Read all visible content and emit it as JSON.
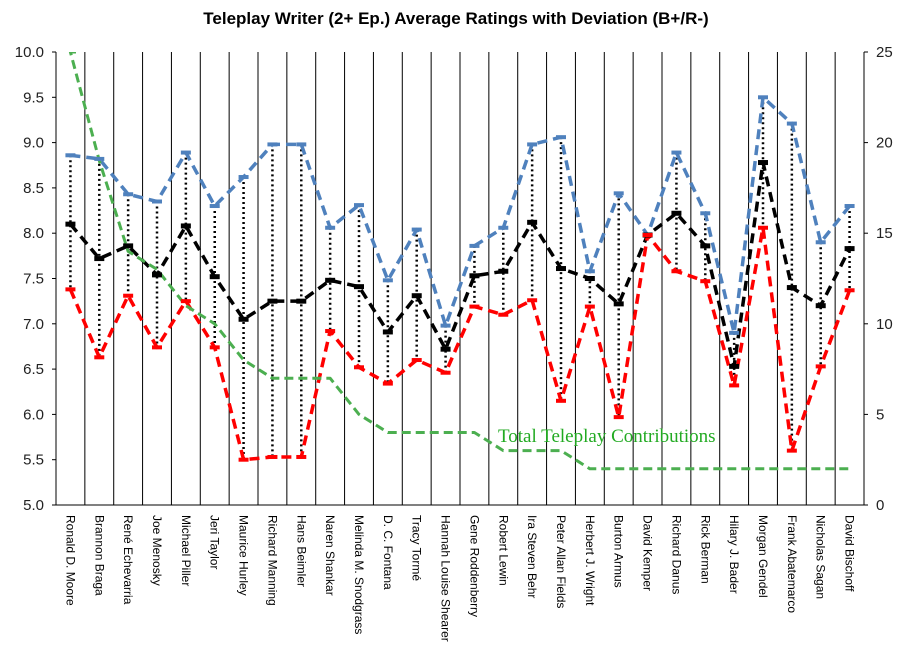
{
  "chart_data": {
    "type": "line",
    "title": "Teleplay Writer (2+ Ep.) Average Ratings with Deviation (B+/R-)",
    "categories": [
      "Ronald D. Moore",
      "Brannon Braga",
      "René Echevarria",
      "Joe Menosky",
      "Michael Piller",
      "Jeri Taylor",
      "Maurice Hurley",
      "Richard Manning",
      "Hans Beimler",
      "Naren Shankar",
      "Melinda M. Snodgrass",
      "D. C. Fontana",
      "Tracy Tormé",
      "Hannah Louise Shearer",
      "Gene Roddenberry",
      "Robert Lewin",
      "Ira Steven Behr",
      "Peter Allan Fields",
      "Herbert J. Wright",
      "Burton Armus",
      "David Kemper",
      "Richard Danus",
      "Rick Berman",
      "Hilary J. Bader",
      "Morgan Gendel",
      "Frank Abatemarco",
      "Nicholas Sagan",
      "David Bischoff"
    ],
    "series": [
      {
        "name": "",
        "role": "max",
        "color": "#4f81bd",
        "axis": "left",
        "values": [
          8.86,
          8.82,
          8.43,
          8.35,
          8.89,
          8.3,
          8.62,
          8.98,
          8.98,
          8.06,
          8.31,
          7.48,
          8.04,
          6.98,
          7.86,
          8.06,
          8.98,
          9.06,
          7.58,
          8.44,
          7.98,
          8.89,
          8.22,
          6.9,
          9.5,
          9.21,
          7.9,
          8.3
        ]
      },
      {
        "name": "",
        "role": "average",
        "color": "#000000",
        "axis": "left",
        "values": [
          8.1,
          7.72,
          7.86,
          7.54,
          8.08,
          7.52,
          7.05,
          7.25,
          7.25,
          7.48,
          7.41,
          6.91,
          7.31,
          6.72,
          7.53,
          7.58,
          8.12,
          7.61,
          7.5,
          7.22,
          7.98,
          8.22,
          7.86,
          6.53,
          8.78,
          7.4,
          7.2,
          7.83
        ]
      },
      {
        "name": "",
        "role": "min",
        "color": "#ff0000",
        "axis": "left",
        "values": [
          7.38,
          6.63,
          7.31,
          6.74,
          7.25,
          6.74,
          5.5,
          5.53,
          5.53,
          6.92,
          6.52,
          6.34,
          6.6,
          6.46,
          7.19,
          7.1,
          7.26,
          6.15,
          7.19,
          5.97,
          7.98,
          7.58,
          7.47,
          6.32,
          8.06,
          5.6,
          6.53,
          7.37
        ]
      },
      {
        "name": "Total Teleplay Contributions",
        "color": "#4caf50",
        "axis": "right",
        "values": [
          25,
          19,
          14,
          13,
          11,
          10,
          8,
          7,
          7,
          7,
          5,
          4,
          4,
          4,
          4,
          3,
          3,
          3,
          2,
          2,
          2,
          2,
          2,
          2,
          2,
          2,
          2,
          2
        ]
      }
    ],
    "ylim": [
      5.0,
      10.0
    ],
    "yticks": [
      "5.0",
      "5.5",
      "6.0",
      "6.5",
      "7.0",
      "7.5",
      "8.0",
      "8.5",
      "9.0",
      "9.5",
      "10.0"
    ],
    "y2lim": [
      0,
      25
    ],
    "y2ticks": [
      "0",
      "5",
      "10",
      "15",
      "20",
      "25"
    ],
    "xlabel": "",
    "ylabel": "",
    "grid": "vertical",
    "annotation": "Total Teleplay Contributions"
  }
}
